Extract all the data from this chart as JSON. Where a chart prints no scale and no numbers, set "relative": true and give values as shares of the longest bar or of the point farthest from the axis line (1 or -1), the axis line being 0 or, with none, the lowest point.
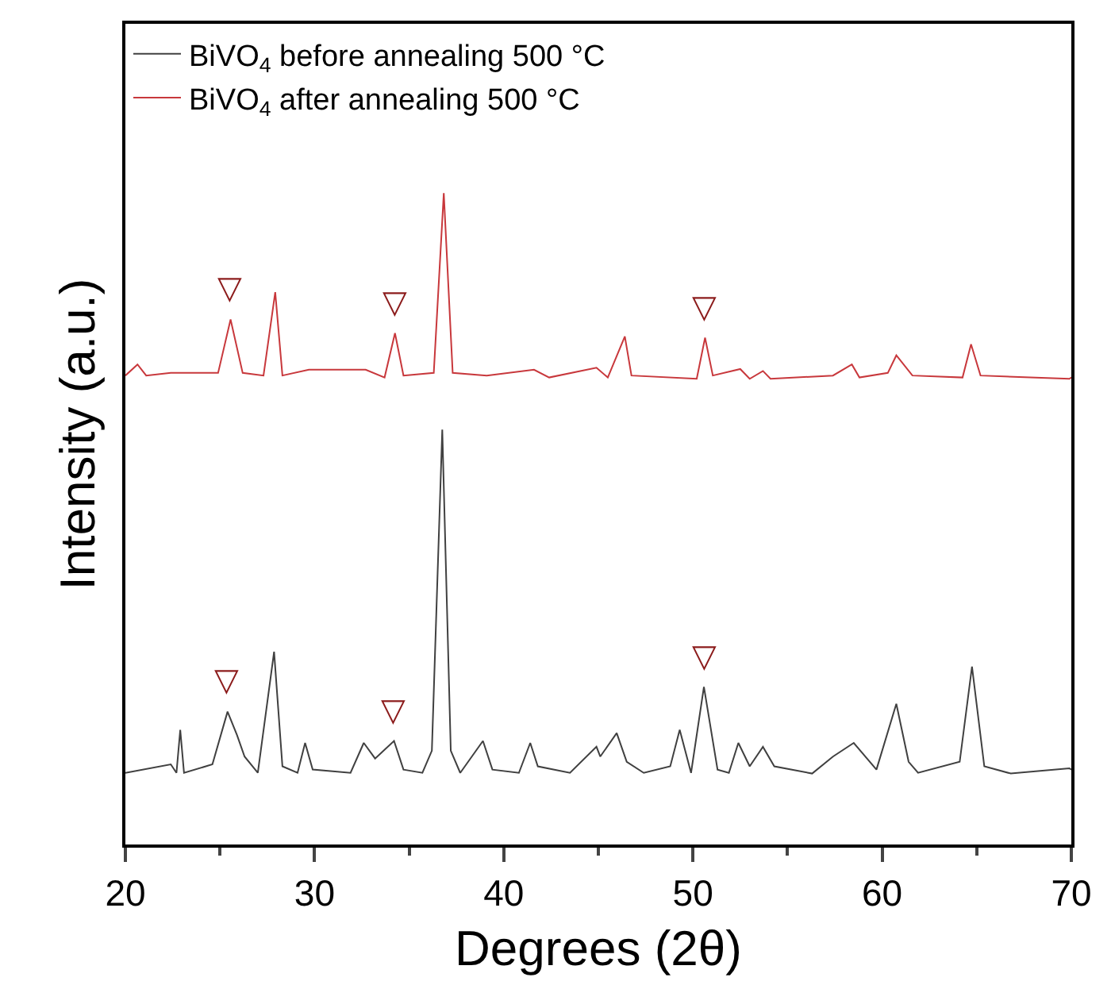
{
  "chart_data": {
    "type": "line",
    "xlabel": "Degrees (2θ)",
    "ylabel": "Intensity (a.u.)",
    "relative": true,
    "tick_labels": "x",
    "legend": "top left",
    "marker": "none",
    "line_style": "solid",
    "xlim": [
      20,
      70
    ],
    "xticks": [
      20,
      {
        "value": 25,
        "label": null
      },
      30,
      {
        "value": 35,
        "label": null
      },
      40,
      {
        "value": 45,
        "label": null
      },
      50,
      {
        "value": 55,
        "label": null
      },
      60,
      {
        "value": 65,
        "label": null
      },
      70
    ],
    "series": [
      {
        "name": "BiVO$_{4}$ before annealing 500 °C",
        "color": "#404040",
        "x": [
          20.0,
          22.4,
          22.7,
          22.9,
          23.1,
          24.6,
          25.4,
          25.9,
          26.3,
          27.0,
          27.86,
          28.3,
          29.1,
          29.5,
          29.9,
          31.9,
          32.6,
          33.2,
          34.2,
          34.7,
          35.7,
          36.2,
          36.75,
          37.2,
          37.7,
          38.9,
          39.4,
          40.8,
          41.4,
          41.8,
          43.5,
          44.9,
          45.1,
          45.97,
          46.5,
          47.4,
          48.8,
          49.3,
          49.9,
          50.58,
          51.3,
          51.9,
          52.4,
          53.0,
          53.7,
          54.3,
          56.3,
          57.4,
          58.5,
          59.7,
          60.75,
          61.4,
          61.9,
          64.1,
          64.75,
          65.4,
          66.8,
          69.9,
          70.0
        ],
        "values": [
          0.11,
          0.123,
          0.11,
          0.176,
          0.11,
          0.123,
          0.204,
          0.168,
          0.135,
          0.11,
          0.296,
          0.12,
          0.11,
          0.156,
          0.115,
          0.11,
          0.156,
          0.132,
          0.159,
          0.115,
          0.11,
          0.144,
          0.637,
          0.144,
          0.11,
          0.159,
          0.115,
          0.11,
          0.156,
          0.12,
          0.11,
          0.15,
          0.135,
          0.171,
          0.127,
          0.11,
          0.12,
          0.176,
          0.11,
          0.242,
          0.115,
          0.11,
          0.156,
          0.12,
          0.15,
          0.12,
          0.109,
          0.135,
          0.156,
          0.115,
          0.216,
          0.127,
          0.11,
          0.127,
          0.273,
          0.12,
          0.109,
          0.117,
          0.115
        ]
      },
      {
        "name": "BiVO$_{4}$ after annealing 500 °C",
        "color": "#c8383c",
        "x": [
          20.0,
          20.64,
          21.1,
          22.4,
          24.9,
          25.56,
          26.2,
          27.3,
          27.92,
          28.3,
          29.7,
          32.7,
          33.7,
          34.25,
          34.7,
          36.3,
          36.83,
          37.3,
          39.1,
          41.6,
          42.4,
          44.9,
          45.5,
          46.4,
          46.75,
          50.2,
          50.64,
          51.05,
          52.5,
          53.0,
          53.7,
          54.1,
          57.4,
          58.4,
          58.8,
          60.3,
          60.75,
          61.6,
          64.25,
          64.7,
          65.2,
          69.9,
          70.0
        ],
        "values": [
          0.72,
          0.737,
          0.72,
          0.724,
          0.724,
          0.806,
          0.724,
          0.72,
          0.848,
          0.72,
          0.729,
          0.729,
          0.717,
          0.785,
          0.72,
          0.724,
          1.0,
          0.724,
          0.72,
          0.729,
          0.717,
          0.732,
          0.717,
          0.78,
          0.72,
          0.715,
          0.778,
          0.72,
          0.73,
          0.715,
          0.727,
          0.715,
          0.72,
          0.737,
          0.717,
          0.724,
          0.751,
          0.72,
          0.717,
          0.768,
          0.72,
          0.715,
          0.717
        ]
      }
    ],
    "annotations": [
      {
        "text": "▽",
        "x": 25.56,
        "y": 0.806
      },
      {
        "text": "▽",
        "x": 34.25,
        "y": 0.785
      },
      {
        "text": "▽",
        "x": 50.64,
        "y": 0.778
      },
      {
        "text": "▽",
        "x": 25.4,
        "y": 0.204
      },
      {
        "text": "▽",
        "x": 34.2,
        "y": 0.159
      },
      {
        "text": "▽",
        "x": 50.58,
        "y": 0.242
      }
    ]
  }
}
